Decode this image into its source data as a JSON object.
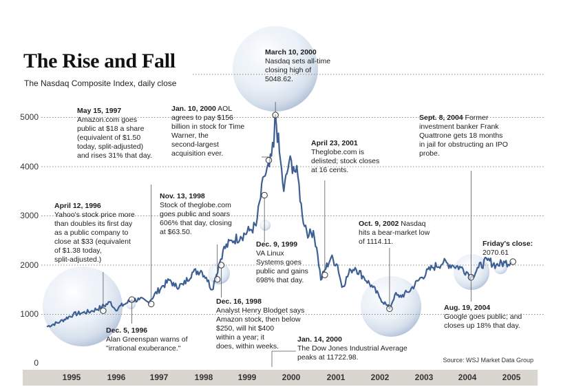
{
  "chart_data": {
    "type": "line",
    "title": "The Rise and Fall",
    "subtitle": "The Nasdaq Composite Index, daily close",
    "source": "Source: WSJ Market Data Group",
    "ylim": [
      0,
      5000
    ],
    "yticks": [
      "0",
      "1000",
      "2000",
      "3000",
      "4000",
      "5000"
    ],
    "xlim": [
      1995,
      2006
    ],
    "xticks": [
      "1995",
      "1996",
      "1997",
      "1998",
      "1999",
      "2000",
      "2001",
      "2002",
      "2003",
      "2004",
      "2005"
    ],
    "series": [
      {
        "name": "Nasdaq Composite",
        "x": [
          1995.0,
          1995.3,
          1995.6,
          1995.8,
          1996.0,
          1996.25,
          1996.45,
          1996.55,
          1996.75,
          1996.93,
          1997.1,
          1997.3,
          1997.6,
          1997.8,
          1997.9,
          1998.1,
          1998.3,
          1998.5,
          1998.62,
          1998.75,
          1998.9,
          1999.0,
          1999.2,
          1999.4,
          1999.6,
          1999.75,
          1999.93,
          2000.05,
          2000.15,
          2000.19,
          2000.28,
          2000.38,
          2000.5,
          2000.6,
          2000.7,
          2000.8,
          2000.95,
          2001.05,
          2001.15,
          2001.22,
          2001.31,
          2001.45,
          2001.6,
          2001.7,
          2001.9,
          2002.0,
          2002.2,
          2002.4,
          2002.55,
          2002.7,
          2002.78,
          2002.9,
          2003.0,
          2003.2,
          2003.5,
          2003.75,
          2004.0,
          2004.2,
          2004.4,
          2004.55,
          2004.63,
          2004.8,
          2005.0,
          2005.2,
          2005.4,
          2005.55
        ],
        "values": [
          750,
          850,
          1000,
          1030,
          1060,
          1150,
          1250,
          1100,
          1200,
          1290,
          1300,
          1250,
          1550,
          1700,
          1570,
          1600,
          1850,
          1890,
          1750,
          1500,
          1980,
          2300,
          2500,
          2580,
          2700,
          2800,
          3800,
          4000,
          4400,
          5048,
          4300,
          3500,
          4100,
          4000,
          3800,
          3000,
          2600,
          2700,
          2200,
          1700,
          1900,
          2150,
          2000,
          1550,
          1900,
          1950,
          1750,
          1550,
          1350,
          1200,
          1114,
          1400,
          1350,
          1450,
          1750,
          1950,
          2050,
          2000,
          1950,
          1850,
          1752,
          1950,
          2100,
          2000,
          2050,
          2070
        ]
      }
    ],
    "highlights": [
      {
        "x": 1996.28,
        "y": 1074
      },
      {
        "x": 1996.93,
        "y": 1300
      },
      {
        "x": 1997.37,
        "y": 1210
      },
      {
        "x": 1998.87,
        "y": 1710
      },
      {
        "x": 1998.96,
        "y": 2000
      },
      {
        "x": 1999.94,
        "y": 3420
      },
      {
        "x": 2000.19,
        "y": 5048
      },
      {
        "x": 2000.04,
        "y": 4130
      },
      {
        "x": 2001.31,
        "y": 1800
      },
      {
        "x": 2002.78,
        "y": 1114
      },
      {
        "x": 2004.63,
        "y": 1752
      },
      {
        "x": 2005.58,
        "y": 2070
      }
    ],
    "annotations": [
      {
        "date": "April 12, 1996",
        "note": "Yahoo's stock price more\nthan doubles its first day\nas a public company to\nclose at $33 (equivalent\nof $1.38 today,\nsplit-adjusted.)"
      },
      {
        "date": "Dec. 5, 1996",
        "note": "Alan Greenspan warns of\n\"irrational exuberance.\""
      },
      {
        "date": "May 15, 1997",
        "note": "Amazon.com goes\npublic at $18 a share\n(equivalent of $1.50\ntoday, split-adjusted)\nand rises 31% that day."
      },
      {
        "date": "Nov. 13, 1998",
        "note": "Stock of theglobe.com\ngoes public and soars\n606% that day, closing\nat $63.50."
      },
      {
        "date": "Dec. 16, 1998",
        "note": "Analyst Henry Blodget says\nAmazon stock, then below\n$250, will hit $400\nwithin a year; it\ndoes, within weeks."
      },
      {
        "date": "Dec. 9, 1999",
        "note": "VA Linux\nSystems  goes\npublic and gains\n698% that day."
      },
      {
        "date": "Jan. 10, 2000",
        "note": "AOL\nagrees to pay $156\nbillion in stock for Time\nWarner, the\nsecond-largest\nacquisition ever."
      },
      {
        "date": "March 10, 2000",
        "note": "Nasdaq sets all-time\nclosing high of\n5048.62."
      },
      {
        "date": "Jan. 14, 2000",
        "note": "The Dow Jones Industrial Average\npeaks at 11722.98."
      },
      {
        "date": "April 23, 2001",
        "note": "Theglobe.com is\ndelisted; stock closes\nat 16 cents."
      },
      {
        "date": "Oct. 9, 2002",
        "note": "Nasdaq\nhits a bear-market low\nof 1114.11."
      },
      {
        "date": "Aug. 19, 2004",
        "note": "Google goes public; and\ncloses up 18% that day."
      },
      {
        "date": "Sept. 8, 2004",
        "note": "Former\ninvestment banker Frank\nQuattrone gets 18 months\nin jail for obstructing an IPO\nprobe."
      },
      {
        "date": "Friday's close:",
        "note": "2070.61"
      }
    ]
  }
}
